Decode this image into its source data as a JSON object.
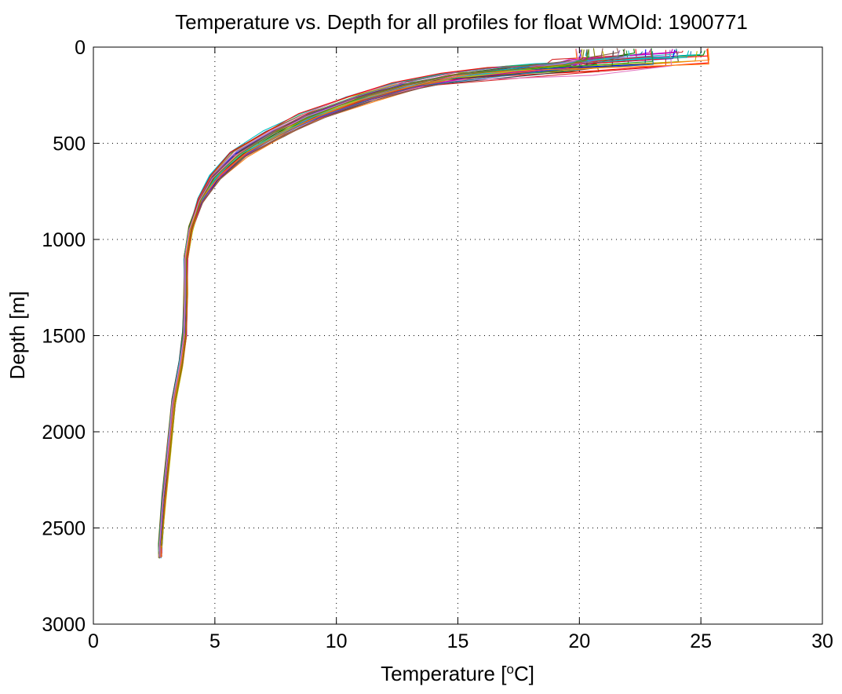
{
  "chart_data": {
    "type": "line",
    "title": "Temperature vs. Depth for all profiles for float WMOId: 1900771",
    "xlabel_main": "Temperature [",
    "xlabel_sup": "o",
    "xlabel_tail": "C]",
    "ylabel": "Depth [m]",
    "xlim": [
      0,
      30
    ],
    "ylim": [
      0,
      3000
    ],
    "y_reversed": true,
    "grid": "dotted",
    "x_ticks": [
      0,
      5,
      10,
      15,
      20,
      25,
      30
    ],
    "x_tick_labels": [
      "0",
      "5",
      "10",
      "15",
      "20",
      "25",
      "30"
    ],
    "y_ticks": [
      0,
      500,
      1000,
      1500,
      2000,
      2500,
      3000
    ],
    "y_tick_labels": [
      "0",
      "500",
      "1000",
      "1500",
      "2000",
      "2500",
      "3000"
    ],
    "reference_profile": [
      {
        "t": 20.9,
        "d": 5
      },
      {
        "t": 20.9,
        "d": 60
      },
      {
        "t": 20.5,
        "d": 85
      },
      {
        "t": 19.0,
        "d": 100
      },
      {
        "t": 17.0,
        "d": 120
      },
      {
        "t": 15.0,
        "d": 150
      },
      {
        "t": 13.0,
        "d": 200
      },
      {
        "t": 11.0,
        "d": 270
      },
      {
        "t": 9.0,
        "d": 360
      },
      {
        "t": 7.5,
        "d": 450
      },
      {
        "t": 6.0,
        "d": 560
      },
      {
        "t": 5.0,
        "d": 680
      },
      {
        "t": 4.4,
        "d": 800
      },
      {
        "t": 4.0,
        "d": 950
      },
      {
        "t": 3.8,
        "d": 1100
      },
      {
        "t": 3.8,
        "d": 1300
      },
      {
        "t": 3.75,
        "d": 1500
      },
      {
        "t": 3.6,
        "d": 1650
      },
      {
        "t": 3.3,
        "d": 1850
      },
      {
        "t": 3.1,
        "d": 2100
      },
      {
        "t": 2.9,
        "d": 2350
      },
      {
        "t": 2.75,
        "d": 2600
      }
    ],
    "profile_count": 48,
    "surface_temperature_range": [
      19.8,
      25.3
    ],
    "deep_temperature_at_2600m": 2.7,
    "colors": [
      "#0000ff",
      "#008000",
      "#ff0000",
      "#00bfbf",
      "#bf00bf",
      "#bfbf00",
      "#404040",
      "#1f77b4",
      "#d62728",
      "#2ca02c",
      "#9467bd",
      "#17becf",
      "#ff7f0e",
      "#8c564b",
      "#e377c2",
      "#7f7f00"
    ]
  }
}
